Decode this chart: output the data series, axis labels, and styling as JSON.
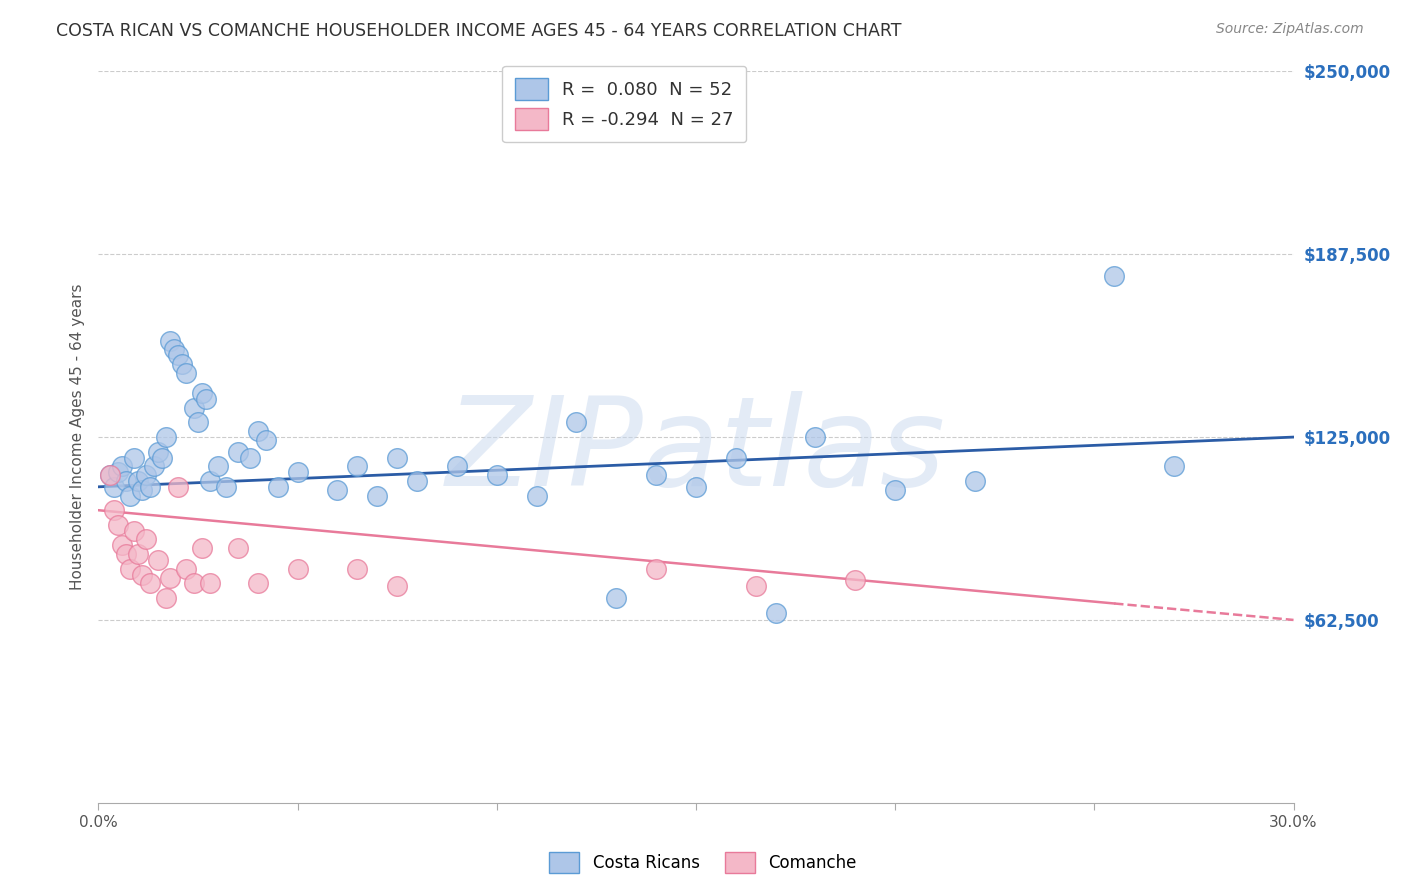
{
  "title": "COSTA RICAN VS COMANCHE HOUSEHOLDER INCOME AGES 45 - 64 YEARS CORRELATION CHART",
  "source": "Source: ZipAtlas.com",
  "ylabel": "Householder Income Ages 45 - 64 years",
  "xlim": [
    0.0,
    0.3
  ],
  "ylim": [
    0,
    250000
  ],
  "xticks": [
    0.0,
    0.05,
    0.1,
    0.15,
    0.2,
    0.25,
    0.3
  ],
  "xticklabels": [
    "0.0%",
    "",
    "",
    "",
    "",
    "",
    "30.0%"
  ],
  "ytick_labels_right": [
    "$250,000",
    "$187,500",
    "$125,000",
    "$62,500"
  ],
  "ytick_values_right": [
    250000,
    187500,
    125000,
    62500
  ],
  "watermark": "ZIPatlas",
  "legend_entries": [
    {
      "label_r": "R =  0.080",
      "label_n": "  N = 52",
      "color_face": "#aec6e8",
      "color_edge": "#5b9bd5"
    },
    {
      "label_r": "R = -0.294",
      "label_n": "  N = 27",
      "color_face": "#f4b8c8",
      "color_edge": "#e87a9a"
    }
  ],
  "blue_scatter_x": [
    0.003,
    0.004,
    0.005,
    0.006,
    0.007,
    0.008,
    0.009,
    0.01,
    0.011,
    0.012,
    0.013,
    0.014,
    0.015,
    0.016,
    0.017,
    0.018,
    0.019,
    0.02,
    0.021,
    0.022,
    0.024,
    0.025,
    0.026,
    0.027,
    0.028,
    0.03,
    0.032,
    0.035,
    0.038,
    0.04,
    0.042,
    0.045,
    0.05,
    0.06,
    0.065,
    0.07,
    0.075,
    0.08,
    0.09,
    0.1,
    0.11,
    0.12,
    0.13,
    0.14,
    0.15,
    0.16,
    0.17,
    0.18,
    0.2,
    0.22,
    0.255,
    0.27
  ],
  "blue_scatter_y": [
    112000,
    108000,
    113000,
    115000,
    110000,
    105000,
    118000,
    110000,
    107000,
    112000,
    108000,
    115000,
    120000,
    118000,
    125000,
    158000,
    155000,
    153000,
    150000,
    147000,
    135000,
    130000,
    140000,
    138000,
    110000,
    115000,
    108000,
    120000,
    118000,
    127000,
    124000,
    108000,
    113000,
    107000,
    115000,
    105000,
    118000,
    110000,
    115000,
    112000,
    105000,
    130000,
    70000,
    112000,
    108000,
    118000,
    65000,
    125000,
    107000,
    110000,
    180000,
    115000
  ],
  "pink_scatter_x": [
    0.003,
    0.004,
    0.005,
    0.006,
    0.007,
    0.008,
    0.009,
    0.01,
    0.011,
    0.012,
    0.013,
    0.015,
    0.017,
    0.018,
    0.02,
    0.022,
    0.024,
    0.026,
    0.028,
    0.035,
    0.04,
    0.05,
    0.065,
    0.075,
    0.14,
    0.165,
    0.19
  ],
  "pink_scatter_y": [
    112000,
    100000,
    95000,
    88000,
    85000,
    80000,
    93000,
    85000,
    78000,
    90000,
    75000,
    83000,
    70000,
    77000,
    108000,
    80000,
    75000,
    87000,
    75000,
    87000,
    75000,
    80000,
    80000,
    74000,
    80000,
    74000,
    76000
  ],
  "blue_line_x0": 0.0,
  "blue_line_y0": 108000,
  "blue_line_x1": 0.3,
  "blue_line_y1": 125000,
  "pink_line_x0": 0.0,
  "pink_line_y0": 100000,
  "pink_line_x1": 0.3,
  "pink_line_y1": 62500,
  "blue_line_color": "#2b5ca6",
  "pink_line_color": "#e87a9a",
  "blue_scatter_face": "#aec6e8",
  "blue_scatter_edge": "#5b9bd5",
  "pink_scatter_face": "#f4b8c8",
  "pink_scatter_edge": "#e87a9a",
  "grid_color": "#cccccc",
  "right_label_color": "#2b6fbd",
  "title_color": "#333333",
  "source_color": "#888888",
  "background_color": "#ffffff"
}
